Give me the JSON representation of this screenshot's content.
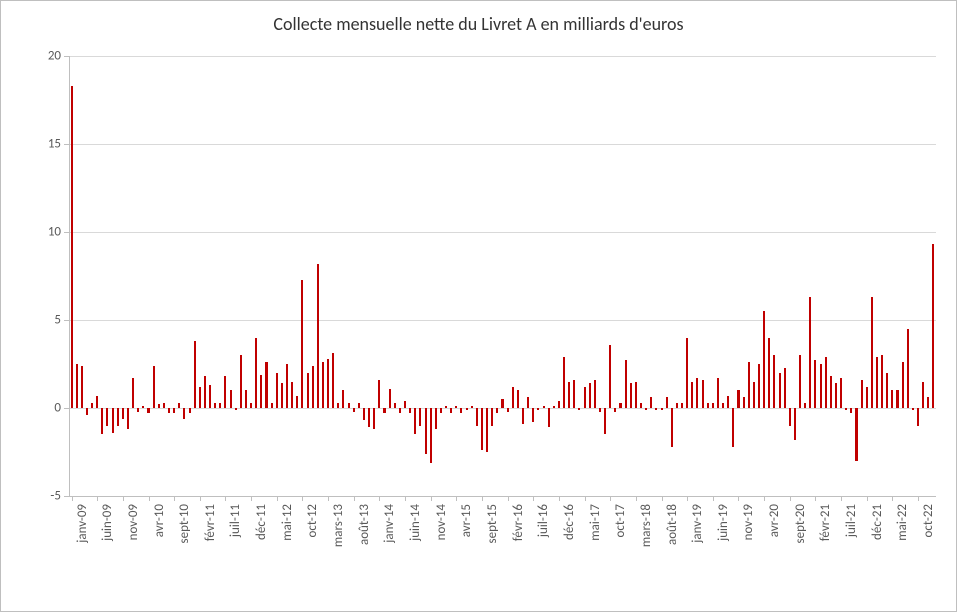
{
  "chart": {
    "type": "bar",
    "title": "Collecte mensuelle nette du Livret A en milliards d'euros",
    "title_fontsize": 18,
    "title_color": "#333333",
    "background_color": "#ffffff",
    "border_color": "#bfbfbf",
    "grid_color": "#d9d9d9",
    "axis_color": "#bfbfbf",
    "label_color": "#595959",
    "label_fontsize": 13,
    "bar_color": "#c00000",
    "ymin": -5,
    "ymax": 20,
    "ytick_step": 5,
    "yticks": [
      -5,
      0,
      5,
      10,
      15,
      20
    ],
    "x_labels": [
      "janv-09",
      "juin-09",
      "nov-09",
      "avr-10",
      "sept-10",
      "févr-11",
      "juil-11",
      "déc-11",
      "mai-12",
      "oct-12",
      "mars-13",
      "août-13",
      "janv-14",
      "juin-14",
      "nov-14",
      "avr-15",
      "sept-15",
      "févr-16",
      "juil-16",
      "déc-16",
      "mai-17",
      "oct-17",
      "mars-18",
      "août-18",
      "janv-19",
      "juin-19",
      "nov-19",
      "avr-20",
      "sept-20",
      "févr-21",
      "juil-21",
      "déc-21",
      "mai-22",
      "oct-22"
    ],
    "x_label_interval": 5,
    "values": [
      18.3,
      2.5,
      2.4,
      -0.4,
      0.3,
      0.7,
      -1.5,
      -1.0,
      -1.4,
      -1.0,
      -0.6,
      -1.2,
      1.7,
      -0.2,
      0.1,
      -0.3,
      2.4,
      0.2,
      0.3,
      -0.3,
      -0.3,
      0.3,
      -0.6,
      -0.3,
      3.8,
      1.2,
      1.8,
      1.3,
      0.3,
      0.3,
      1.8,
      1.0,
      -0.1,
      3.0,
      1.0,
      0.3,
      4.0,
      1.9,
      2.6,
      0.3,
      2.0,
      1.4,
      2.5,
      1.5,
      0.7,
      7.3,
      2.0,
      2.4,
      8.2,
      2.6,
      2.8,
      3.1,
      0.3,
      1.0,
      0.3,
      -0.2,
      0.3,
      -0.7,
      -1.1,
      -1.2,
      1.6,
      -0.3,
      1.1,
      0.3,
      -0.3,
      0.4,
      -0.3,
      -1.5,
      -1.0,
      -2.6,
      -3.1,
      -1.2,
      -0.3,
      0.1,
      -0.3,
      0.1,
      -0.3,
      -0.1,
      0.1,
      -1.0,
      -2.4,
      -2.5,
      -1.0,
      -0.3,
      0.5,
      -0.2,
      1.2,
      1.0,
      -0.9,
      0.6,
      -0.8,
      -0.1,
      0.1,
      -1.1,
      0.1,
      0.4,
      2.9,
      1.5,
      1.6,
      -0.1,
      1.2,
      1.4,
      1.6,
      -0.2,
      -1.5,
      3.6,
      -0.2,
      0.3,
      2.7,
      1.4,
      1.5,
      0.3,
      -0.1,
      0.6,
      -0.1,
      -0.1,
      0.6,
      -2.2,
      0.3,
      0.3,
      4.0,
      1.5,
      1.7,
      1.6,
      0.3,
      0.3,
      1.7,
      0.3,
      0.7,
      -2.2,
      1.0,
      0.6,
      2.6,
      1.5,
      2.5,
      5.5,
      4.0,
      3.0,
      2.0,
      2.3,
      -1.0,
      -1.8,
      3.0,
      0.3,
      6.3,
      2.7,
      2.5,
      2.9,
      1.8,
      1.4,
      1.7,
      -0.1,
      -0.3,
      -3.0,
      1.6,
      1.2,
      6.3,
      2.9,
      3.0,
      2.0,
      1.0,
      1.0,
      2.6,
      4.5,
      -0.1,
      -1.0,
      1.5,
      0.6,
      9.3
    ]
  }
}
